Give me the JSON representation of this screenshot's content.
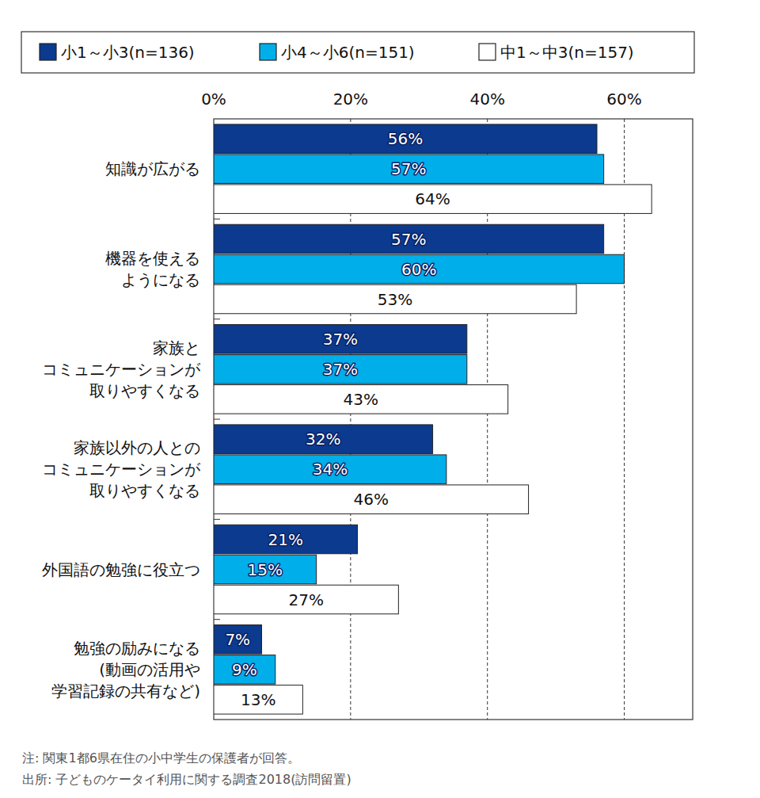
{
  "chart_data": {
    "type": "bar",
    "orientation": "horizontal",
    "categories": [
      "知識が広がる",
      "機器を使える\nようになる",
      "家族と\nコミュニケーションが\n取りやすくなる",
      "家族以外の人との\nコミュニケーションが\n取りやすくなる",
      "外国語の勉強に役立つ",
      "勉強の励みになる\n(動画の活用や\n学習記録の共有など)"
    ],
    "series": [
      {
        "name": "小1～小3(n=136)",
        "color": "#0b3a8e",
        "values": [
          56,
          57,
          37,
          32,
          21,
          7
        ],
        "value_labels": [
          "56%",
          "57%",
          "37%",
          "32%",
          "21%",
          "7%"
        ]
      },
      {
        "name": "小4～小6(n=151)",
        "color": "#00aeea",
        "values": [
          57,
          60,
          37,
          34,
          15,
          9
        ],
        "value_labels": [
          "57%",
          "60%",
          "37%",
          "34%",
          "15%",
          "9%"
        ]
      },
      {
        "name": "中1～中3(n=157)",
        "color": "#ffffff",
        "values": [
          64,
          53,
          43,
          46,
          27,
          13
        ],
        "value_labels": [
          "64%",
          "53%",
          "43%",
          "46%",
          "27%",
          "13%"
        ]
      }
    ],
    "xlim": [
      0,
      70
    ],
    "xticks": [
      {
        "value": 0,
        "label": "0%"
      },
      {
        "value": 20,
        "label": "20%"
      },
      {
        "value": 40,
        "label": "40%"
      },
      {
        "value": 60,
        "label": "60%"
      }
    ],
    "grid": true,
    "data_labels": true,
    "legend": "top",
    "notes": [
      "注: 関東1都6県在住の小中学生の保護者が回答。",
      "出所: 子どものケータイ利用に関する調査2018(訪問留置)"
    ]
  }
}
